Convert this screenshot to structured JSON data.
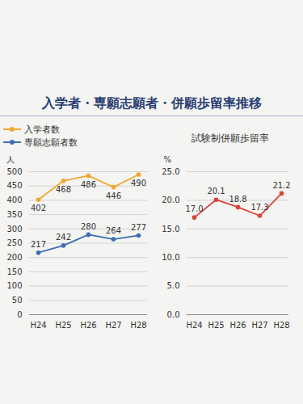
{
  "title": "入学者・専願志願者・併願歩留率推移",
  "chart_data": [
    {
      "type": "line",
      "categories": [
        "H24",
        "H25",
        "H26",
        "H27",
        "H28"
      ],
      "series": [
        {
          "name": "入学者数",
          "color": "#f0a830",
          "marker": "circle",
          "values": [
            402,
            468,
            486,
            446,
            490
          ]
        },
        {
          "name": "専願志願者数",
          "color": "#3d6eb5",
          "marker": "circle",
          "values": [
            217,
            242,
            280,
            264,
            277
          ]
        }
      ],
      "y_label": "人",
      "ylim": [
        0,
        500
      ],
      "yticks": [
        0,
        50,
        100,
        150,
        200,
        250,
        300,
        350,
        400,
        450,
        500
      ],
      "grid": true,
      "legend": "top",
      "data_labels": true
    },
    {
      "type": "line",
      "title": "試験制併願歩留率",
      "categories": [
        "H24",
        "H25",
        "H26",
        "H27",
        "H28"
      ],
      "series": [
        {
          "color": "#d9443a",
          "marker": "circle",
          "values": [
            17.0,
            20.1,
            18.8,
            17.3,
            21.2
          ],
          "value_labels": [
            "17.0",
            "20.1",
            "18.8",
            "17.3",
            "21.2"
          ]
        }
      ],
      "y_label": "%",
      "ylim": [
        0,
        25
      ],
      "yticks": [
        {
          "value": 0,
          "label": "0.0"
        },
        {
          "value": 5,
          "label": "5.0"
        },
        {
          "value": 10,
          "label": "10.0"
        },
        {
          "value": 15,
          "label": "15.0"
        },
        {
          "value": 20,
          "label": "20.0"
        },
        {
          "value": 25,
          "label": "25.0"
        }
      ],
      "grid": true,
      "data_labels": true
    }
  ]
}
